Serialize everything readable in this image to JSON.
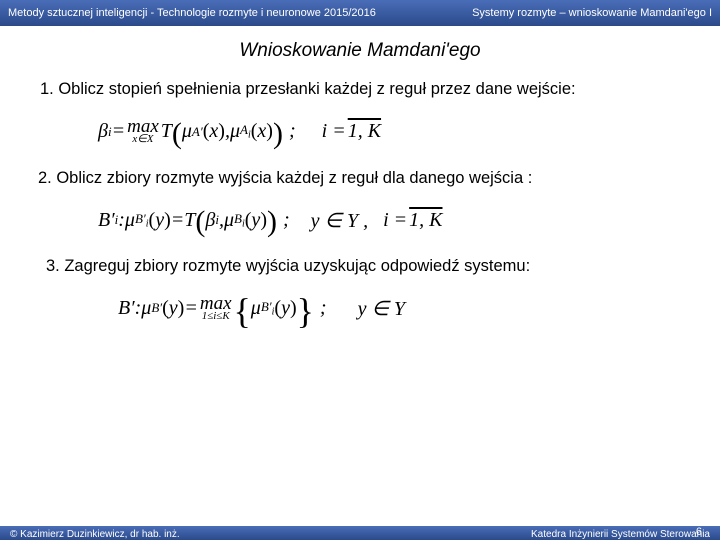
{
  "header": {
    "left": "Metody sztucznej inteligencji -  Technologie rozmyte i neuronowe  2015/2016",
    "right": "Systemy rozmyte – wnioskowanie Mamdani'ego I"
  },
  "title": "Wnioskowanie Mamdani'ego",
  "steps": {
    "s1": "1. Oblicz stopień spełnienia przesłanki każdej z reguł przez dane wejście:",
    "s2": "2. Oblicz zbiory rozmyte wyjścia każdej z reguł dla danego wejścia :",
    "s3": "3. Zagreguj zbiory rozmyte wyjścia uzyskując odpowiedź systemu:"
  },
  "formula": {
    "beta": "β",
    "i": "i",
    "eq": " = ",
    "max": "max",
    "xinX": "x∈X",
    "T": "T",
    "mu": "μ",
    "Aprime": "A′",
    "x": "x",
    "A": "A",
    "semi": ";",
    "ieq": "i = ",
    "range": "1, K",
    "Bprime": "B′",
    "colon": " : ",
    "y": "y",
    "B": "B",
    "yinY": "y ∈ Y ,",
    "yinY2": "y ∈ Y",
    "oneleK": "1≤i≤K",
    "comma": ", "
  },
  "footer": {
    "left": "©  Kazimierz Duzinkiewicz, dr hab. inż.",
    "right": "Katedra Inżynierii Systemów Sterowania",
    "page": "6"
  },
  "colors": {
    "header_top": "#4a6db8",
    "header_bottom": "#2a4a8a",
    "bg": "#ffffff",
    "text": "#000000"
  }
}
